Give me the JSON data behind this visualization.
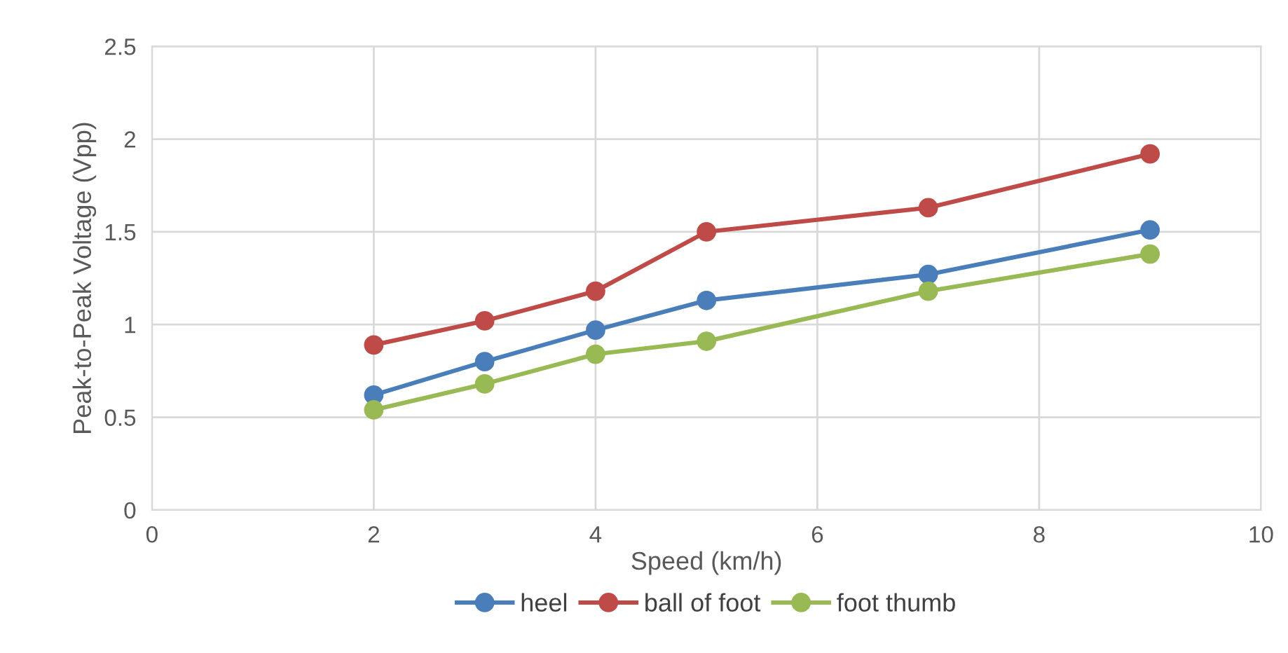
{
  "chart_data": {
    "type": "line",
    "xlabel": "Speed (km/h)",
    "ylabel": "Peak-to-Peak Voltage (Vpp)",
    "x": [
      2,
      3,
      4,
      5,
      7,
      9
    ],
    "series": [
      {
        "name": "heel",
        "color": "#4a7ebb",
        "values": [
          0.62,
          0.8,
          0.97,
          1.13,
          1.27,
          1.51
        ]
      },
      {
        "name": "ball of foot",
        "color": "#be4b48",
        "values": [
          0.89,
          1.02,
          1.18,
          1.5,
          1.63,
          1.92
        ]
      },
      {
        "name": "foot thumb",
        "color": "#98b954",
        "values": [
          0.54,
          0.68,
          0.84,
          0.91,
          1.18,
          1.38
        ]
      }
    ],
    "xlim": [
      0,
      10
    ],
    "xticks": [
      0,
      2,
      4,
      6,
      8,
      10
    ],
    "ylim": [
      0,
      2.5
    ],
    "yticks": [
      0,
      0.5,
      1,
      1.5,
      2,
      2.5
    ],
    "grid": true,
    "legend": "bottom",
    "marker": "circle",
    "line_style": "solid"
  }
}
